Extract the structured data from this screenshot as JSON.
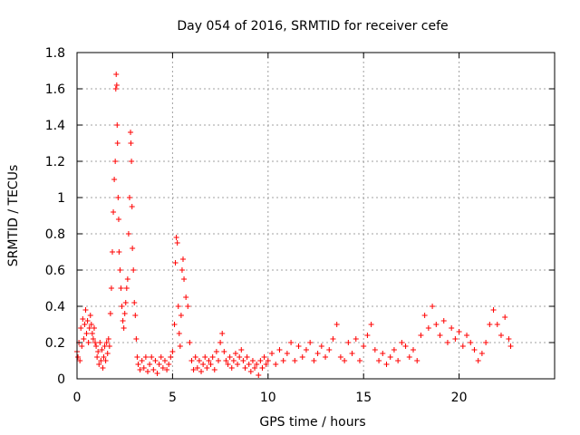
{
  "chart_data": {
    "type": "scatter",
    "title": "Day 054 of 2016, SRMTID for receiver cefe",
    "xlabel": "GPS time / hours",
    "ylabel": "SRMTID / TECUs",
    "xlim": [
      0,
      25
    ],
    "ylim": [
      0,
      1.8
    ],
    "grid": true,
    "marker": "+",
    "x_ticks": [
      0,
      5,
      10,
      15,
      20
    ],
    "y_ticks": [
      0,
      0.2,
      0.4,
      0.6,
      0.8,
      1,
      1.2,
      1.4,
      1.6,
      1.8
    ],
    "x_tick_labels": [
      "0",
      "5",
      "10",
      "15",
      "20"
    ],
    "y_tick_labels": [
      "0",
      "0.2",
      "0.4",
      "0.6",
      "0.8",
      "1",
      "1.2",
      "1.4",
      "1.6",
      "1.8"
    ],
    "series": [
      {
        "name": "cefe",
        "color": "#ff0000",
        "points": [
          [
            0.0,
            0.15
          ],
          [
            0.05,
            0.12
          ],
          [
            0.1,
            0.2
          ],
          [
            0.15,
            0.1
          ],
          [
            0.2,
            0.28
          ],
          [
            0.25,
            0.18
          ],
          [
            0.3,
            0.33
          ],
          [
            0.35,
            0.22
          ],
          [
            0.4,
            0.3
          ],
          [
            0.45,
            0.38
          ],
          [
            0.5,
            0.25
          ],
          [
            0.55,
            0.32
          ],
          [
            0.6,
            0.2
          ],
          [
            0.65,
            0.28
          ],
          [
            0.7,
            0.35
          ],
          [
            0.75,
            0.3
          ],
          [
            0.8,
            0.25
          ],
          [
            0.85,
            0.22
          ],
          [
            0.9,
            0.28
          ],
          [
            0.95,
            0.2
          ],
          [
            1.0,
            0.18
          ],
          [
            1.05,
            0.12
          ],
          [
            1.1,
            0.15
          ],
          [
            1.15,
            0.08
          ],
          [
            1.2,
            0.2
          ],
          [
            1.25,
            0.1
          ],
          [
            1.3,
            0.16
          ],
          [
            1.35,
            0.06
          ],
          [
            1.4,
            0.12
          ],
          [
            1.45,
            0.18
          ],
          [
            1.5,
            0.1
          ],
          [
            1.55,
            0.2
          ],
          [
            1.6,
            0.14
          ],
          [
            1.65,
            0.22
          ],
          [
            1.7,
            0.18
          ],
          [
            1.75,
            0.36
          ],
          [
            1.8,
            0.5
          ],
          [
            1.85,
            0.7
          ],
          [
            1.9,
            0.92
          ],
          [
            1.95,
            1.1
          ],
          [
            2.0,
            1.2
          ],
          [
            2.03,
            1.6
          ],
          [
            2.05,
            1.68
          ],
          [
            2.08,
            1.62
          ],
          [
            2.1,
            1.4
          ],
          [
            2.12,
            1.3
          ],
          [
            2.15,
            1.0
          ],
          [
            2.18,
            0.88
          ],
          [
            2.2,
            0.7
          ],
          [
            2.25,
            0.6
          ],
          [
            2.3,
            0.5
          ],
          [
            2.35,
            0.4
          ],
          [
            2.4,
            0.32
          ],
          [
            2.45,
            0.28
          ],
          [
            2.5,
            0.36
          ],
          [
            2.55,
            0.42
          ],
          [
            2.6,
            0.5
          ],
          [
            2.65,
            0.55
          ],
          [
            2.7,
            0.8
          ],
          [
            2.75,
            1.0
          ],
          [
            2.8,
            1.36
          ],
          [
            2.82,
            1.3
          ],
          [
            2.85,
            1.2
          ],
          [
            2.88,
            0.95
          ],
          [
            2.9,
            0.72
          ],
          [
            2.95,
            0.6
          ],
          [
            3.0,
            0.42
          ],
          [
            3.05,
            0.35
          ],
          [
            3.1,
            0.22
          ],
          [
            3.15,
            0.12
          ],
          [
            3.2,
            0.08
          ],
          [
            3.3,
            0.05
          ],
          [
            3.4,
            0.1
          ],
          [
            3.5,
            0.06
          ],
          [
            3.6,
            0.12
          ],
          [
            3.7,
            0.04
          ],
          [
            3.8,
            0.08
          ],
          [
            3.9,
            0.12
          ],
          [
            4.0,
            0.05
          ],
          [
            4.1,
            0.1
          ],
          [
            4.2,
            0.03
          ],
          [
            4.3,
            0.08
          ],
          [
            4.4,
            0.12
          ],
          [
            4.5,
            0.06
          ],
          [
            4.6,
            0.1
          ],
          [
            4.7,
            0.05
          ],
          [
            4.8,
            0.08
          ],
          [
            4.9,
            0.12
          ],
          [
            5.0,
            0.15
          ],
          [
            5.1,
            0.3
          ],
          [
            5.15,
            0.64
          ],
          [
            5.2,
            0.78
          ],
          [
            5.25,
            0.75
          ],
          [
            5.3,
            0.4
          ],
          [
            5.35,
            0.25
          ],
          [
            5.4,
            0.18
          ],
          [
            5.45,
            0.35
          ],
          [
            5.5,
            0.6
          ],
          [
            5.55,
            0.66
          ],
          [
            5.6,
            0.55
          ],
          [
            5.7,
            0.45
          ],
          [
            5.8,
            0.4
          ],
          [
            5.9,
            0.2
          ],
          [
            6.0,
            0.1
          ],
          [
            6.1,
            0.05
          ],
          [
            6.2,
            0.12
          ],
          [
            6.3,
            0.06
          ],
          [
            6.4,
            0.1
          ],
          [
            6.5,
            0.04
          ],
          [
            6.6,
            0.08
          ],
          [
            6.7,
            0.12
          ],
          [
            6.8,
            0.06
          ],
          [
            6.9,
            0.1
          ],
          [
            7.0,
            0.08
          ],
          [
            7.1,
            0.12
          ],
          [
            7.2,
            0.05
          ],
          [
            7.3,
            0.15
          ],
          [
            7.4,
            0.1
          ],
          [
            7.5,
            0.2
          ],
          [
            7.6,
            0.25
          ],
          [
            7.7,
            0.15
          ],
          [
            7.8,
            0.1
          ],
          [
            7.9,
            0.08
          ],
          [
            8.0,
            0.12
          ],
          [
            8.1,
            0.06
          ],
          [
            8.2,
            0.1
          ],
          [
            8.3,
            0.14
          ],
          [
            8.4,
            0.08
          ],
          [
            8.5,
            0.12
          ],
          [
            8.6,
            0.16
          ],
          [
            8.7,
            0.1
          ],
          [
            8.8,
            0.06
          ],
          [
            8.9,
            0.12
          ],
          [
            9.0,
            0.08
          ],
          [
            9.1,
            0.04
          ],
          [
            9.2,
            0.1
          ],
          [
            9.3,
            0.06
          ],
          [
            9.4,
            0.08
          ],
          [
            9.5,
            0.02
          ],
          [
            9.6,
            0.1
          ],
          [
            9.7,
            0.06
          ],
          [
            9.8,
            0.12
          ],
          [
            9.9,
            0.08
          ],
          [
            10.0,
            0.1
          ],
          [
            10.2,
            0.14
          ],
          [
            10.4,
            0.08
          ],
          [
            10.6,
            0.16
          ],
          [
            10.8,
            0.1
          ],
          [
            11.0,
            0.14
          ],
          [
            11.2,
            0.2
          ],
          [
            11.4,
            0.1
          ],
          [
            11.6,
            0.18
          ],
          [
            11.8,
            0.12
          ],
          [
            12.0,
            0.16
          ],
          [
            12.2,
            0.2
          ],
          [
            12.4,
            0.1
          ],
          [
            12.6,
            0.14
          ],
          [
            12.8,
            0.18
          ],
          [
            13.0,
            0.12
          ],
          [
            13.2,
            0.16
          ],
          [
            13.4,
            0.22
          ],
          [
            13.6,
            0.3
          ],
          [
            13.8,
            0.12
          ],
          [
            14.0,
            0.1
          ],
          [
            14.2,
            0.2
          ],
          [
            14.4,
            0.14
          ],
          [
            14.6,
            0.22
          ],
          [
            14.8,
            0.1
          ],
          [
            15.0,
            0.18
          ],
          [
            15.2,
            0.24
          ],
          [
            15.4,
            0.3
          ],
          [
            15.6,
            0.16
          ],
          [
            15.8,
            0.1
          ],
          [
            16.0,
            0.14
          ],
          [
            16.2,
            0.08
          ],
          [
            16.4,
            0.12
          ],
          [
            16.6,
            0.16
          ],
          [
            16.8,
            0.1
          ],
          [
            17.0,
            0.2
          ],
          [
            17.2,
            0.18
          ],
          [
            17.4,
            0.12
          ],
          [
            17.6,
            0.16
          ],
          [
            17.8,
            0.1
          ],
          [
            18.0,
            0.24
          ],
          [
            18.2,
            0.35
          ],
          [
            18.4,
            0.28
          ],
          [
            18.6,
            0.4
          ],
          [
            18.8,
            0.3
          ],
          [
            19.0,
            0.24
          ],
          [
            19.2,
            0.32
          ],
          [
            19.4,
            0.2
          ],
          [
            19.6,
            0.28
          ],
          [
            19.8,
            0.22
          ],
          [
            20.0,
            0.26
          ],
          [
            20.2,
            0.18
          ],
          [
            20.4,
            0.24
          ],
          [
            20.6,
            0.2
          ],
          [
            20.8,
            0.16
          ],
          [
            21.0,
            0.1
          ],
          [
            21.2,
            0.14
          ],
          [
            21.4,
            0.2
          ],
          [
            21.6,
            0.3
          ],
          [
            21.8,
            0.38
          ],
          [
            22.0,
            0.3
          ],
          [
            22.2,
            0.24
          ],
          [
            22.4,
            0.34
          ],
          [
            22.6,
            0.22
          ],
          [
            22.7,
            0.18
          ]
        ]
      }
    ]
  }
}
